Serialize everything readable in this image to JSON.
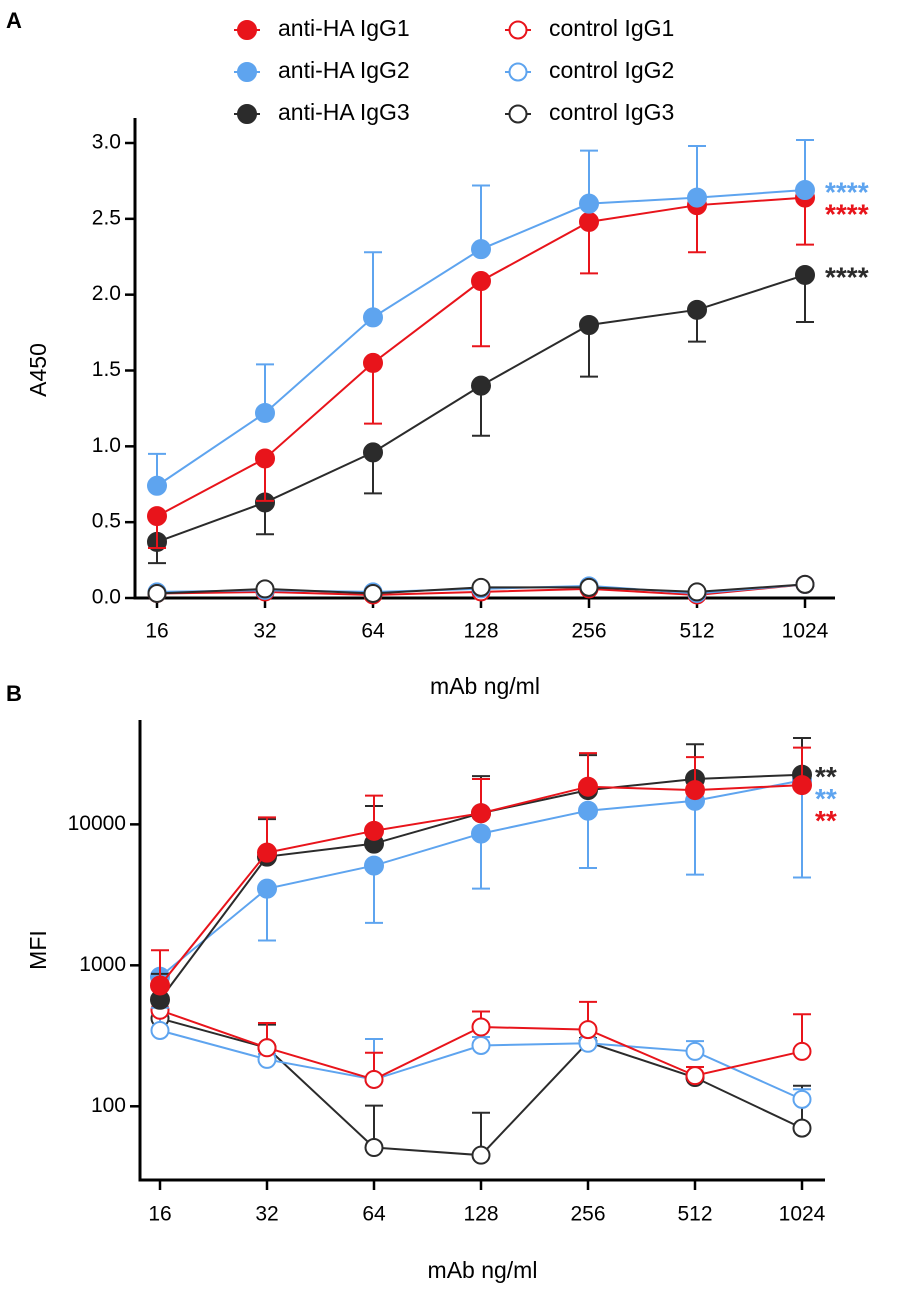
{
  "chart_data": [
    {
      "type": "line",
      "panel": "A",
      "ylabel": "A450",
      "xlabel": "mAb ng/ml",
      "categories": [
        "16",
        "32",
        "64",
        "128",
        "256",
        "512",
        "1024"
      ],
      "ylim": [
        0,
        3.0
      ],
      "yticks": [
        {
          "value": 0,
          "label": "0.0"
        },
        {
          "value": 0.5,
          "label": "0.5"
        },
        {
          "value": 1,
          "label": "1.0"
        },
        {
          "value": 1.5,
          "label": "1.5"
        },
        {
          "value": 2,
          "label": "2.0"
        },
        {
          "value": 2.5,
          "label": "2.5"
        },
        {
          "value": 3,
          "label": "3.0"
        }
      ],
      "log_scale": false,
      "series": [
        {
          "name": "control IgG1",
          "color": "#e8141b",
          "filled": false,
          "values": [
            0.03,
            0.04,
            0.02,
            0.04,
            0.06,
            0.02,
            0.09
          ]
        },
        {
          "name": "control IgG2",
          "color": "#5ea4ef",
          "filled": false,
          "values": [
            0.04,
            0.05,
            0.04,
            0.06,
            0.08,
            0.03,
            0.09
          ]
        },
        {
          "name": "control IgG3",
          "color": "#2b2b2b",
          "filled": false,
          "values": [
            0.03,
            0.06,
            0.03,
            0.07,
            0.07,
            0.04,
            0.09
          ]
        },
        {
          "name": "anti-HA IgG3",
          "color": "#2b2b2b",
          "filled": true,
          "values": [
            0.37,
            0.63,
            0.96,
            1.4,
            1.8,
            1.9,
            2.13
          ],
          "errors": [
            0.14,
            0.21,
            0.27,
            0.33,
            0.34,
            0.21,
            0.31
          ],
          "error_direction": "down"
        },
        {
          "name": "anti-HA IgG1",
          "color": "#e8141b",
          "filled": true,
          "values": [
            0.54,
            0.92,
            1.55,
            2.09,
            2.48,
            2.59,
            2.64
          ],
          "errors": [
            0.21,
            0.28,
            0.4,
            0.43,
            0.34,
            0.31,
            0.31
          ],
          "error_direction": "down"
        },
        {
          "name": "anti-HA IgG2",
          "color": "#5ea4ef",
          "filled": true,
          "values": [
            0.74,
            1.22,
            1.85,
            2.3,
            2.6,
            2.64,
            2.69
          ],
          "errors": [
            0.21,
            0.32,
            0.43,
            0.42,
            0.35,
            0.34,
            0.33
          ],
          "error_direction": "up"
        }
      ],
      "annotations": [
        {
          "text": "****",
          "color": "#5ea4ef"
        },
        {
          "text": "****",
          "color": "#e8141b"
        },
        {
          "text": "****",
          "color": "#2b2b2b"
        }
      ]
    },
    {
      "type": "line",
      "panel": "B",
      "ylabel": "MFI",
      "xlabel": "mAb ng/ml",
      "categories": [
        "16",
        "32",
        "64",
        "128",
        "256",
        "512",
        "1024"
      ],
      "ylim": [
        30,
        55000
      ],
      "yticks": [
        100,
        1000,
        10000
      ],
      "log_scale": true,
      "series": [
        {
          "color": "#2b2b2b",
          "filled": false,
          "values": [
            420,
            260,
            51,
            45,
            285,
            160,
            70
          ],
          "errors": [
            30,
            120,
            50,
            45,
            20,
            10,
            70
          ],
          "error_direction": "up"
        },
        {
          "color": "#5ea4ef",
          "filled": false,
          "values": [
            345,
            215,
            155,
            270,
            280,
            245,
            112
          ],
          "errors": [
            105,
            20,
            145,
            40,
            20,
            45,
            20
          ],
          "error_direction": "up"
        },
        {
          "color": "#e8141b",
          "filled": false,
          "values": [
            480,
            260,
            155,
            365,
            350,
            165,
            245
          ],
          "errors": [
            60,
            130,
            85,
            105,
            200,
            25,
            205
          ],
          "error_direction": "up"
        },
        {
          "color": "#5ea4ef",
          "filled": true,
          "values": [
            830,
            3500,
            5100,
            8600,
            12500,
            14700,
            20500
          ],
          "errors": [
            330,
            2000,
            3100,
            5100,
            7600,
            10300,
            16300
          ],
          "error_direction": "down"
        },
        {
          "color": "#2b2b2b",
          "filled": true,
          "values": [
            570,
            5900,
            7300,
            12000,
            17500,
            21000,
            22500
          ],
          "errors": [
            300,
            5000,
            6200,
            10000,
            13500,
            16000,
            18500
          ],
          "error_direction": "up"
        },
        {
          "color": "#e8141b",
          "filled": true,
          "values": [
            720,
            6300,
            9000,
            12000,
            18500,
            17500,
            19000
          ],
          "errors": [
            560,
            4900,
            7000,
            9000,
            13500,
            12500,
            16000
          ],
          "error_direction": "up"
        }
      ],
      "annotations": [
        {
          "text": "**",
          "color": "#2b2b2b"
        },
        {
          "text": "**",
          "color": "#5ea4ef"
        },
        {
          "text": "**",
          "color": "#e8141b"
        }
      ]
    }
  ]
}
